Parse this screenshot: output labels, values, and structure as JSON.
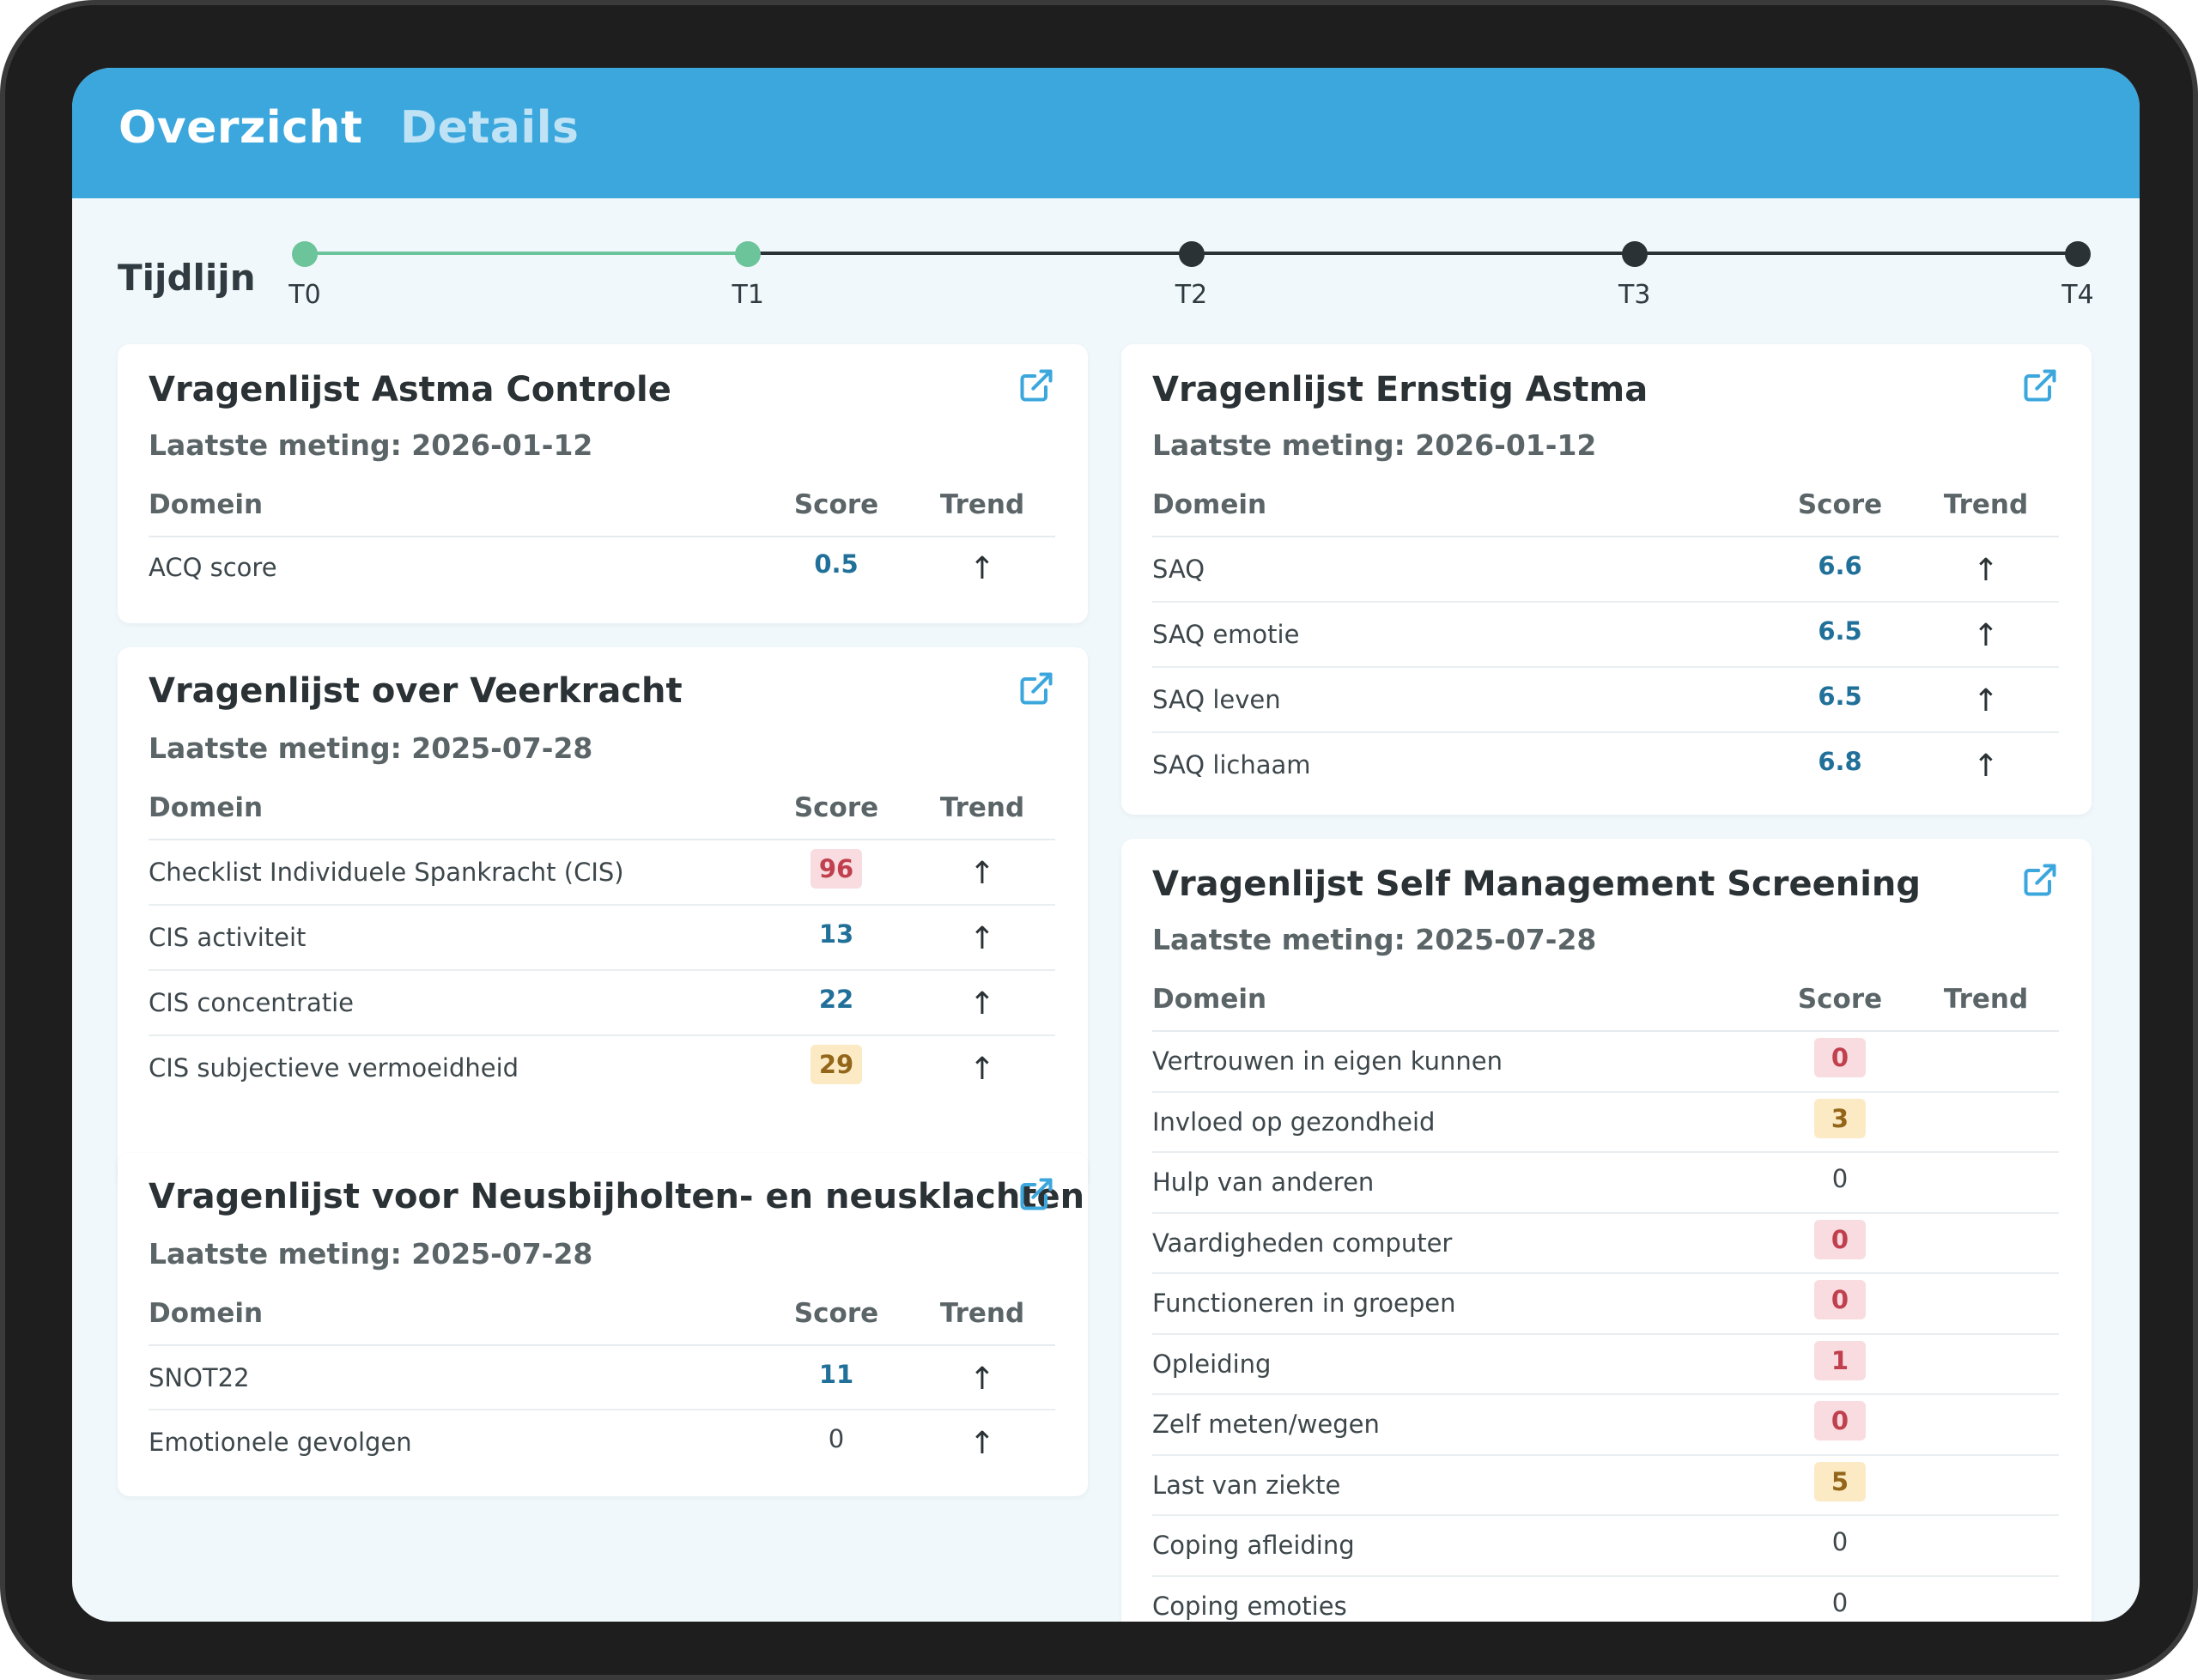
{
  "tabs": [
    {
      "label": "Overzicht",
      "active": true
    },
    {
      "label": "Details",
      "active": false
    }
  ],
  "timeline": {
    "label": "Tijdlijn",
    "points": [
      "T0",
      "T1",
      "T2",
      "T3",
      "T4"
    ],
    "completed_through": "T1"
  },
  "colors": {
    "header": "#3ba7dd",
    "timeline_done": "#6cc49a",
    "timeline_todo": "#2b3236",
    "score_blue": "#21709a",
    "score_red_bg": "#f8dcdf",
    "score_yellow_bg": "#fbeac4"
  },
  "table_headers": {
    "domain": "Domein",
    "score": "Score",
    "trend": "Trend"
  },
  "cards": {
    "astma_controle": {
      "title": "Vragenlijst Astma Controle",
      "subtitle": "Laatste meting: 2026-01-12",
      "icon": "external-link-icon",
      "rows": [
        {
          "domain": "ACQ score",
          "score": "0.5",
          "style": "blue",
          "trend": "↑"
        }
      ]
    },
    "veerkracht": {
      "title": "Vragenlijst over Veerkracht",
      "subtitle": "Laatste meting: 2025-07-28",
      "icon": "external-link-icon",
      "rows": [
        {
          "domain": "Checklist Individuele Spankracht (CIS)",
          "score": "96",
          "style": "red",
          "trend": "↑"
        },
        {
          "domain": "CIS activiteit",
          "score": "13",
          "style": "blue",
          "trend": "↑"
        },
        {
          "domain": "CIS concentratie",
          "score": "22",
          "style": "blue",
          "trend": "↑"
        },
        {
          "domain": "CIS subjectieve vermoeidheid",
          "score": "29",
          "style": "yellow",
          "trend": "↑"
        }
      ]
    },
    "neusbijholten": {
      "title": "Vragenlijst voor Neusbijholten- en neusklachten",
      "subtitle": "Laatste meting: 2025-07-28",
      "icon": "external-link-icon",
      "rows": [
        {
          "domain": "SNOT22",
          "score": "11",
          "style": "blue",
          "trend": "↑"
        },
        {
          "domain": "Emotionele gevolgen",
          "score": "0",
          "style": "plain",
          "trend": "↑"
        }
      ]
    },
    "ernstig_astma": {
      "title": "Vragenlijst Ernstig Astma",
      "subtitle": "Laatste meting: 2026-01-12",
      "icon": "external-link-icon",
      "rows": [
        {
          "domain": "SAQ",
          "score": "6.6",
          "style": "blue",
          "trend": "↑"
        },
        {
          "domain": "SAQ emotie",
          "score": "6.5",
          "style": "blue",
          "trend": "↑"
        },
        {
          "domain": "SAQ leven",
          "score": "6.5",
          "style": "blue",
          "trend": "↑"
        },
        {
          "domain": "SAQ lichaam",
          "score": "6.8",
          "style": "blue",
          "trend": "↑"
        }
      ]
    },
    "self_management": {
      "title": "Vragenlijst Self Management Screening",
      "subtitle": "Laatste meting: 2025-07-28",
      "icon": "external-link-icon",
      "rows": [
        {
          "domain": "Vertrouwen in eigen kunnen",
          "score": "0",
          "style": "red",
          "trend": ""
        },
        {
          "domain": "Invloed op gezondheid",
          "score": "3",
          "style": "yellow",
          "trend": ""
        },
        {
          "domain": "Hulp van anderen",
          "score": "0",
          "style": "plain",
          "trend": ""
        },
        {
          "domain": "Vaardigheden computer",
          "score": "0",
          "style": "red",
          "trend": ""
        },
        {
          "domain": "Functioneren in groepen",
          "score": "0",
          "style": "red",
          "trend": ""
        },
        {
          "domain": "Opleiding",
          "score": "1",
          "style": "red",
          "trend": ""
        },
        {
          "domain": "Zelf meten/wegen",
          "score": "0",
          "style": "red",
          "trend": ""
        },
        {
          "domain": "Last van ziekte",
          "score": "5",
          "style": "yellow",
          "trend": ""
        },
        {
          "domain": "Coping afleiding",
          "score": "0",
          "style": "plain",
          "trend": ""
        },
        {
          "domain": "Coping emoties",
          "score": "0",
          "style": "plain",
          "trend": ""
        }
      ]
    }
  }
}
